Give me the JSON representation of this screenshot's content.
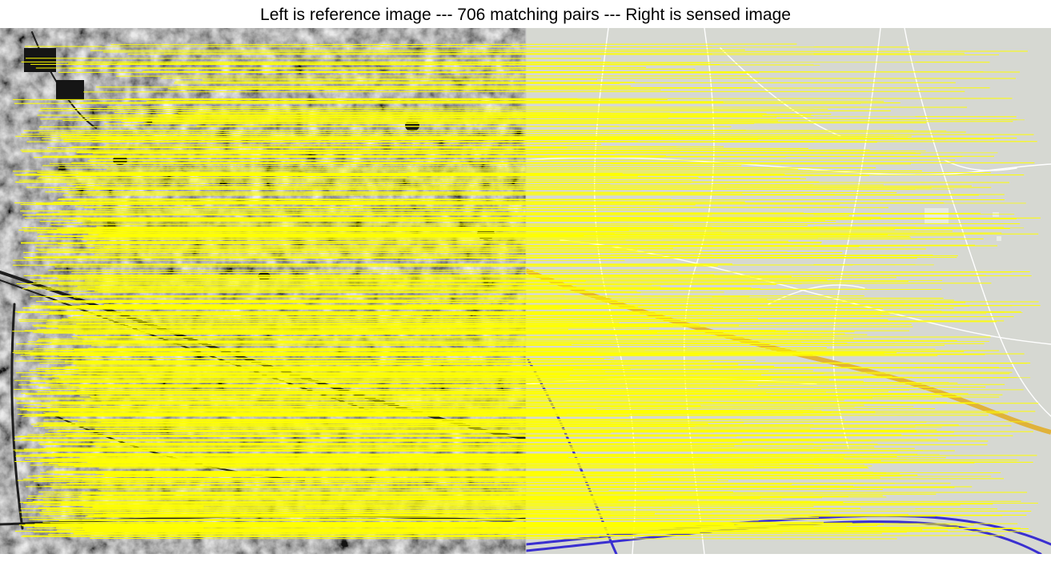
{
  "figure": {
    "title": "Left is reference image --- 706 matching pairs --- Right is sensed image"
  },
  "reference_image": {
    "kind": "grayscale satellite terrain image"
  },
  "sensed_image": {
    "kind": "map rendering",
    "background_color": "#d6d8d2",
    "road_color": "#ffffff",
    "highway_color": "#e0b23a",
    "railway_color": "#3a2fd0"
  },
  "matches": {
    "count": 706,
    "line_color": "#ffff00"
  }
}
